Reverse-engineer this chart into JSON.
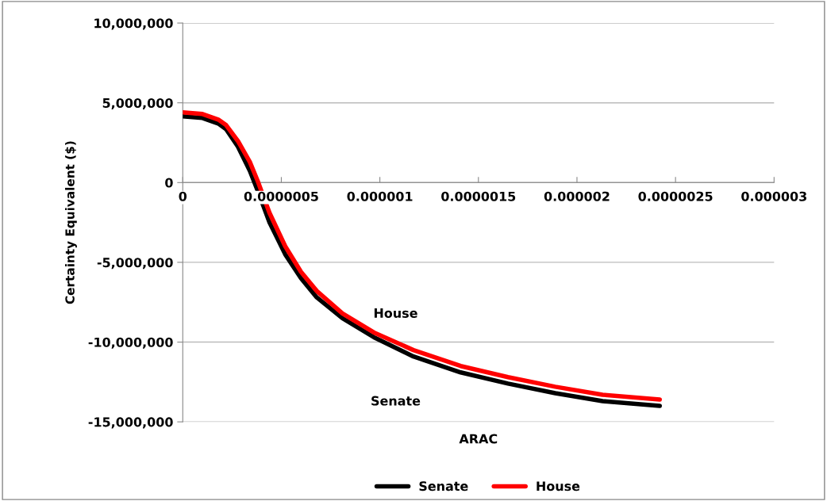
{
  "chart_data": {
    "type": "line",
    "xlabel": "ARAC",
    "ylabel": "Certainty Equivalent ($)",
    "xlim": [
      0,
      3e-06
    ],
    "xticks": [
      0,
      {
        "value": 5e-07,
        "label": "0.0000005"
      },
      {
        "value": 1e-06,
        "label": "0.000001"
      },
      {
        "value": 1.5e-06,
        "label": "0.0000015"
      },
      {
        "value": 2e-06,
        "label": "0.000002"
      },
      {
        "value": 2.5e-06,
        "label": "0.0000025"
      },
      {
        "value": 3e-06,
        "label": "0.000003"
      }
    ],
    "ylim": [
      -15000000,
      10000000
    ],
    "yticks": [
      {
        "value": -15000000,
        "label": "-15,000,000"
      },
      {
        "value": -10000000,
        "label": "-10,000,000"
      },
      {
        "value": -5000000,
        "label": "-5,000,000"
      },
      0,
      {
        "value": 5000000,
        "label": "5,000,000"
      },
      {
        "value": 10000000,
        "label": "10,000,000"
      }
    ],
    "x": [
      0,
      1e-07,
      1.8e-07,
      2.2e-07,
      2.8e-07,
      3.4e-07,
      3.8e-07,
      4.4e-07,
      5.2e-07,
      6e-07,
      6.8e-07,
      8.1e-07,
      9.7e-07,
      1.17e-06,
      1.41e-06,
      1.65e-06,
      1.89e-06,
      2.13e-06,
      2.42e-06
    ],
    "series": [
      {
        "name": "Senate",
        "color": "#000000",
        "values": [
          4150000,
          4050000,
          3700000,
          3350000,
          2250000,
          750000,
          -500000,
          -2500000,
          -4500000,
          -6000000,
          -7200000,
          -8500000,
          -9700000,
          -10900000,
          -11900000,
          -12600000,
          -13200000,
          -13700000,
          -14000000
        ]
      },
      {
        "name": "House",
        "color": "#ff0000",
        "values": [
          4400000,
          4300000,
          3950000,
          3600000,
          2600000,
          1300000,
          100000,
          -1900000,
          -4000000,
          -5600000,
          -6800000,
          -8200000,
          -9400000,
          -10500000,
          -11500000,
          -12200000,
          -12800000,
          -13300000,
          -13600000
        ]
      }
    ],
    "annotations": [
      "House",
      "Senate"
    ],
    "grid": "y",
    "legend": "bottom",
    "marker": "none",
    "line_style": "solid"
  }
}
